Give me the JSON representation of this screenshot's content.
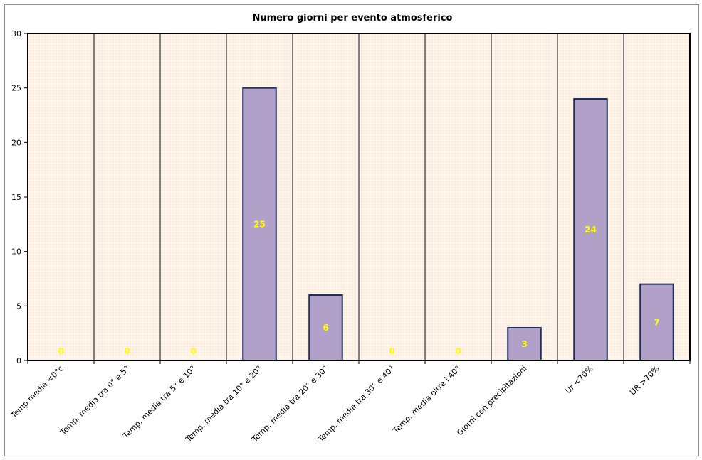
{
  "chart_data": {
    "type": "bar",
    "title": "Numero giorni per evento atmosferico",
    "categories": [
      "Temp media <0°c",
      "Temp. media tra 0° e 5°",
      "Temp. media tra 5° e 10°",
      "Temp. media tra 10° e 20°",
      "Temp. media tra 20° e 30°",
      "Temp. media tra 30° e 40°",
      "Temp. media oltre i 40°",
      "Giorni con precipitazioni",
      "Ur <70%",
      "UR >70%"
    ],
    "values": [
      0,
      0,
      0,
      25,
      6,
      0,
      0,
      3,
      24,
      7
    ],
    "ylim": [
      0,
      30
    ],
    "yticks": [
      0,
      5,
      10,
      15,
      20,
      25,
      30
    ],
    "grid": "vertical",
    "legend": "none",
    "colors": {
      "bar_fill": "#b1a0c7",
      "bar_stroke": "#1f2d5c",
      "plot_bg": "#fff2e6",
      "data_label": "#ffff00",
      "grid": "#808080"
    }
  }
}
